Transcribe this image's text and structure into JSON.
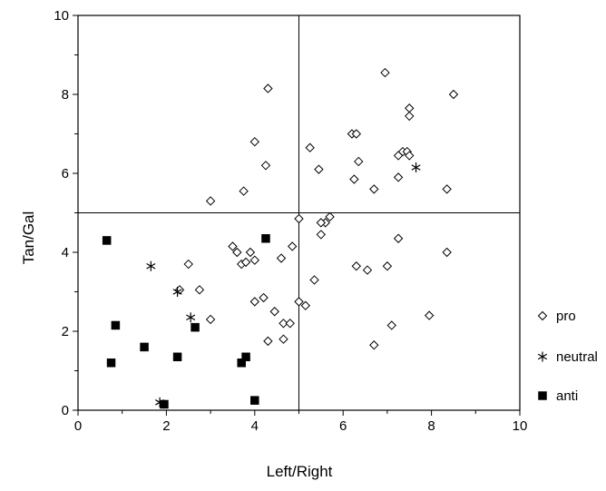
{
  "chart_data": {
    "type": "scatter",
    "title": "",
    "xlabel": "Left/Right",
    "ylabel": "Tan/Gal",
    "xlim": [
      0,
      10
    ],
    "ylim": [
      0,
      10
    ],
    "x_ticks": [
      "0",
      "2",
      "4",
      "6",
      "8",
      "10"
    ],
    "y_ticks": [
      "0",
      "2",
      "4",
      "6",
      "8",
      "10"
    ],
    "reference_lines": {
      "x": 5,
      "y": 5
    },
    "grid": false,
    "legend_position": "right",
    "series": [
      {
        "name": "pro",
        "marker": "diamond-open",
        "points": [
          [
            4.3,
            8.15
          ],
          [
            6.95,
            8.55
          ],
          [
            8.5,
            8.0
          ],
          [
            7.5,
            7.65
          ],
          [
            7.5,
            7.45
          ],
          [
            4.0,
            6.8
          ],
          [
            5.25,
            6.65
          ],
          [
            6.2,
            7.0
          ],
          [
            6.3,
            7.0
          ],
          [
            7.35,
            6.55
          ],
          [
            7.45,
            6.55
          ],
          [
            7.25,
            6.45
          ],
          [
            7.5,
            6.45
          ],
          [
            6.35,
            6.3
          ],
          [
            4.25,
            6.2
          ],
          [
            5.45,
            6.1
          ],
          [
            7.25,
            5.9
          ],
          [
            6.25,
            5.85
          ],
          [
            8.35,
            5.6
          ],
          [
            3.75,
            5.55
          ],
          [
            6.7,
            5.6
          ],
          [
            3.0,
            5.3
          ],
          [
            5.0,
            4.85
          ],
          [
            5.7,
            4.9
          ],
          [
            5.6,
            4.75
          ],
          [
            5.5,
            4.75
          ],
          [
            5.5,
            4.45
          ],
          [
            7.25,
            4.35
          ],
          [
            4.85,
            4.15
          ],
          [
            3.5,
            4.15
          ],
          [
            3.6,
            4.0
          ],
          [
            3.9,
            4.0
          ],
          [
            8.35,
            4.0
          ],
          [
            4.6,
            3.85
          ],
          [
            4.0,
            3.8
          ],
          [
            2.5,
            3.7
          ],
          [
            3.7,
            3.7
          ],
          [
            3.8,
            3.75
          ],
          [
            6.3,
            3.65
          ],
          [
            7.0,
            3.65
          ],
          [
            6.55,
            3.55
          ],
          [
            5.35,
            3.3
          ],
          [
            2.75,
            3.05
          ],
          [
            2.3,
            3.05
          ],
          [
            4.0,
            2.75
          ],
          [
            4.2,
            2.85
          ],
          [
            5.0,
            2.75
          ],
          [
            5.15,
            2.65
          ],
          [
            4.45,
            2.5
          ],
          [
            7.95,
            2.4
          ],
          [
            3.0,
            2.3
          ],
          [
            4.65,
            2.2
          ],
          [
            4.8,
            2.2
          ],
          [
            7.1,
            2.15
          ],
          [
            4.3,
            1.75
          ],
          [
            4.65,
            1.8
          ],
          [
            6.7,
            1.65
          ]
        ]
      },
      {
        "name": "neutral",
        "marker": "asterisk",
        "points": [
          [
            7.65,
            6.15
          ],
          [
            1.65,
            3.65
          ],
          [
            2.25,
            3.0
          ],
          [
            2.55,
            2.35
          ],
          [
            1.85,
            0.2
          ]
        ]
      },
      {
        "name": "anti",
        "marker": "square-filled",
        "points": [
          [
            0.65,
            4.3
          ],
          [
            4.25,
            4.35
          ],
          [
            0.85,
            2.15
          ],
          [
            2.65,
            2.1
          ],
          [
            1.5,
            1.6
          ],
          [
            2.25,
            1.35
          ],
          [
            3.8,
            1.35
          ],
          [
            0.75,
            1.2
          ],
          [
            3.7,
            1.2
          ],
          [
            1.95,
            0.15
          ],
          [
            4.0,
            0.25
          ]
        ]
      }
    ]
  }
}
